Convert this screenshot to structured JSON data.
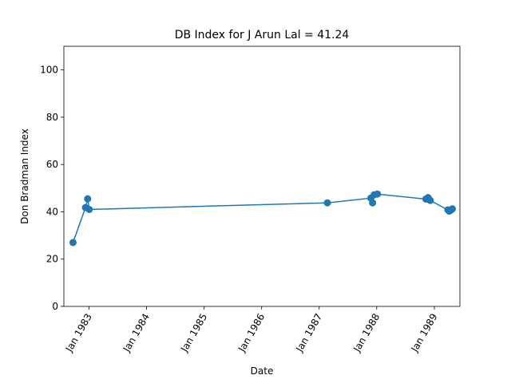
{
  "chart_data": {
    "type": "line",
    "title": "DB Index for J Arun Lal = 41.24",
    "xlabel": "Date",
    "ylabel": "Don Bradman Index",
    "xlim": [
      "1982-07-26",
      "1989-06-12"
    ],
    "ylim": [
      0,
      110
    ],
    "x_ticks": [
      {
        "date": "1983-01-01",
        "label": "Jan 1983"
      },
      {
        "date": "1984-01-01",
        "label": "Jan 1984"
      },
      {
        "date": "1985-01-01",
        "label": "Jan 1985"
      },
      {
        "date": "1986-01-01",
        "label": "Jan 1986"
      },
      {
        "date": "1987-01-01",
        "label": "Jan 1987"
      },
      {
        "date": "1988-01-01",
        "label": "Jan 1988"
      },
      {
        "date": "1989-01-01",
        "label": "Jan 1989"
      }
    ],
    "y_ticks": [
      0,
      20,
      40,
      60,
      80,
      100
    ],
    "grid": false,
    "legend": "none",
    "series": [
      {
        "color": "#1f77b4",
        "marker": "circle",
        "points": [
          {
            "x": "1982-09-22",
            "y": 27.0
          },
          {
            "x": "1982-12-10",
            "y": 41.8
          },
          {
            "x": "1982-12-24",
            "y": 45.5
          },
          {
            "x": "1983-01-03",
            "y": 41.0
          },
          {
            "x": "1987-02-22",
            "y": 43.8
          },
          {
            "x": "1987-11-25",
            "y": 45.8
          },
          {
            "x": "1987-12-06",
            "y": 43.8
          },
          {
            "x": "1987-12-16",
            "y": 47.2
          },
          {
            "x": "1988-01-06",
            "y": 47.5
          },
          {
            "x": "1988-11-08",
            "y": 45.4
          },
          {
            "x": "1988-11-22",
            "y": 46.0
          },
          {
            "x": "1988-11-28",
            "y": 45.2
          },
          {
            "x": "1988-12-06",
            "y": 44.8
          },
          {
            "x": "1989-03-28",
            "y": 40.8
          },
          {
            "x": "1989-04-05",
            "y": 40.3
          },
          {
            "x": "1989-04-13",
            "y": 40.6
          },
          {
            "x": "1989-04-20",
            "y": 41.0
          },
          {
            "x": "1989-04-25",
            "y": 41.24
          }
        ]
      }
    ]
  }
}
